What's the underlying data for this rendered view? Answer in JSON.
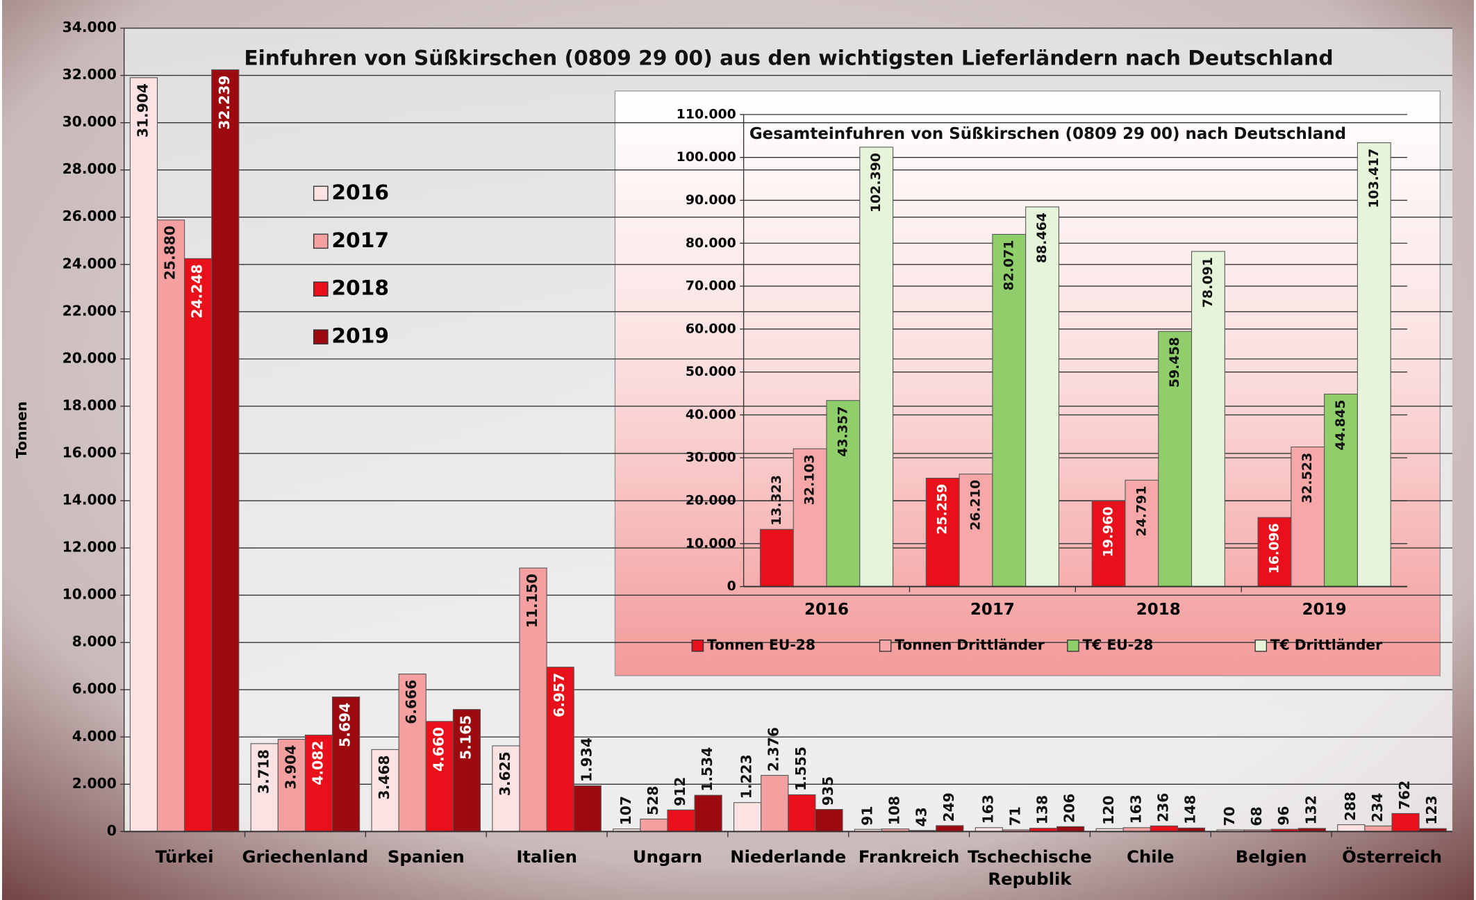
{
  "chart_data": [
    {
      "type": "bar",
      "title": "Einfuhren von Süßkirschen (0809 29 00) aus den wichtigsten Lieferländern nach Deutschland",
      "y_label": "Tonnen",
      "categories": [
        "Türkei",
        "Griechenland",
        "Spanien",
        "Italien",
        "Ungarn",
        "Niederlande",
        "Frankreich",
        "Tschechische Republik",
        "Chile",
        "Belgien",
        "Österreich"
      ],
      "series": [
        {
          "name": "2016",
          "color": "#fbe3e3",
          "values": [
            31904,
            3718,
            3468,
            3625,
            107,
            1223,
            91,
            163,
            120,
            70,
            288
          ],
          "value_labels": [
            "31.904",
            "3.718",
            "3.468",
            "3.625",
            "107",
            "1.223",
            "91",
            "163",
            "120",
            "70",
            "288"
          ]
        },
        {
          "name": "2017",
          "color": "#f4a0a0",
          "values": [
            25880,
            3904,
            6666,
            11150,
            528,
            2376,
            108,
            71,
            163,
            68,
            234
          ],
          "value_labels": [
            "25.880",
            "3.904",
            "6.666",
            "11.150",
            "528",
            "2.376",
            "108",
            "71",
            "163",
            "68",
            "234"
          ]
        },
        {
          "name": "2018",
          "color": "#e8101a",
          "values": [
            24248,
            4082,
            4660,
            6957,
            912,
            1555,
            43,
            138,
            236,
            96,
            762
          ],
          "value_labels": [
            "24.248",
            "4.082",
            "4.660",
            "6.957",
            "912",
            "1.555",
            "43",
            "138",
            "236",
            "96",
            "762"
          ]
        },
        {
          "name": "2019",
          "color": "#9c0a10",
          "values": [
            32239,
            5694,
            5165,
            1934,
            1534,
            935,
            249,
            206,
            148,
            132,
            123
          ],
          "value_labels": [
            "32.239",
            "5.694",
            "5.165",
            "1.934",
            "1.534",
            "935",
            "249",
            "206",
            "148",
            "132",
            "123"
          ]
        }
      ],
      "ylim": [
        0,
        34000
      ],
      "yticks": [
        0,
        {
          "value": 2000,
          "label": "2.000"
        },
        {
          "value": 4000,
          "label": "4.000"
        },
        {
          "value": 6000,
          "label": "6.000"
        },
        {
          "value": 8000,
          "label": "8.000"
        },
        {
          "value": 10000,
          "label": "10.000"
        },
        {
          "value": 12000,
          "label": "12.000"
        },
        {
          "value": 14000,
          "label": "14.000"
        },
        {
          "value": 16000,
          "label": "16.000"
        },
        {
          "value": 18000,
          "label": "18.000"
        },
        {
          "value": 20000,
          "label": "20.000"
        },
        {
          "value": 22000,
          "label": "22.000"
        },
        {
          "value": 24000,
          "label": "24.000"
        },
        {
          "value": 26000,
          "label": "26.000"
        },
        {
          "value": 28000,
          "label": "28.000"
        },
        {
          "value": 30000,
          "label": "30.000"
        },
        {
          "value": 32000,
          "label": "32.000"
        },
        {
          "value": 34000,
          "label": "34.000"
        }
      ],
      "grid": true,
      "legend": "upper left"
    },
    {
      "type": "bar",
      "title": "Gesamteinfuhren von Süßkirschen (0809 29 00) nach Deutschland",
      "categories": [
        "2016",
        "2017",
        "2018",
        "2019"
      ],
      "series": [
        {
          "name": "Tonnen EU-28",
          "color": "#e8101a",
          "values": [
            13323,
            25259,
            19960,
            16096
          ],
          "value_labels": [
            "13.323",
            "25.259",
            "19.960",
            "16.096"
          ]
        },
        {
          "name": "Tonnen Drittländer",
          "color": "#f6a8a8",
          "values": [
            32103,
            26210,
            24791,
            32523
          ],
          "value_labels": [
            "32.103",
            "26.210",
            "24.791",
            "32.523"
          ]
        },
        {
          "name": "T€ EU-28",
          "color": "#8fce6a",
          "values": [
            43357,
            82071,
            59458,
            44845
          ],
          "value_labels": [
            "43.357",
            "82.071",
            "59.458",
            "44.845"
          ]
        },
        {
          "name": "T€ Drittländer",
          "color": "#e6f5da",
          "values": [
            102390,
            88464,
            78091,
            103417
          ],
          "value_labels": [
            "102.390",
            "88.464",
            "78.091",
            "103.417"
          ]
        }
      ],
      "ylim": [
        0,
        110000
      ],
      "yticks": [
        0,
        {
          "value": 10000,
          "label": "10.000"
        },
        {
          "value": 20000,
          "label": "20.000"
        },
        {
          "value": 30000,
          "label": "30.000"
        },
        {
          "value": 40000,
          "label": "40.000"
        },
        {
          "value": 50000,
          "label": "50.000"
        },
        {
          "value": 60000,
          "label": "60.000"
        },
        {
          "value": 70000,
          "label": "70.000"
        },
        {
          "value": 80000,
          "label": "80.000"
        },
        {
          "value": 90000,
          "label": "90.000"
        },
        {
          "value": 100000,
          "label": "100.000"
        },
        {
          "value": 110000,
          "label": "110.000"
        }
      ],
      "grid": true,
      "legend": "bottom"
    }
  ]
}
